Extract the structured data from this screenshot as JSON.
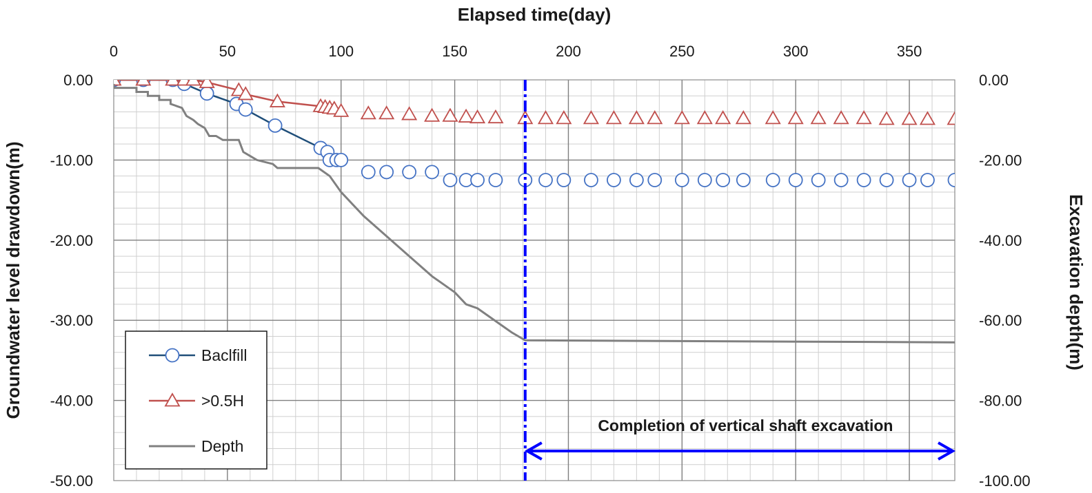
{
  "chart_data": {
    "type": "line",
    "title": "",
    "xlabel": "Elapsed time(day)",
    "ylabel": "Groundwater level drawdown(m)",
    "y2label": "Excavation  depth(m)",
    "xlim": [
      0,
      370
    ],
    "ylim": [
      -50,
      0
    ],
    "y2lim": [
      -100,
      0
    ],
    "x_ticks": [
      "0",
      "50",
      "100",
      "150",
      "200",
      "250",
      "300",
      "350"
    ],
    "y_ticks": [
      "0.00",
      "-10.00",
      "-20.00",
      "-30.00",
      "-40.00",
      "-50.00"
    ],
    "y2_ticks": [
      "0.00",
      "-20.00",
      "-40.00",
      "-60.00",
      "-80.00",
      "-100.00"
    ],
    "grid": true,
    "legend_position": "bottom-left",
    "series": [
      {
        "name": "Baclfill",
        "color": "#1f4e79",
        "marker": "circle",
        "marker_color": "#4472c4",
        "axis": "left",
        "x": [
          0,
          13,
          26,
          31,
          41,
          54,
          58,
          71,
          91,
          94,
          95,
          98,
          100,
          112,
          120,
          130,
          140,
          148,
          155,
          160,
          168,
          181,
          190,
          198,
          210,
          220,
          230,
          238,
          250,
          260,
          268,
          277,
          290,
          300,
          310,
          320,
          330,
          340,
          350,
          358,
          370
        ],
        "y": [
          0,
          0,
          0,
          -0.5,
          -1.7,
          -3,
          -3.7,
          -5.7,
          -8.5,
          -9,
          -10,
          -10,
          -10,
          -11.5,
          -11.5,
          -11.5,
          -11.5,
          -12.5,
          -12.5,
          -12.5,
          -12.5,
          -12.5,
          -12.5,
          -12.5,
          -12.5,
          -12.5,
          -12.5,
          -12.5,
          -12.5,
          -12.5,
          -12.5,
          -12.5,
          -12.5,
          -12.5,
          -12.5,
          -12.5,
          -12.5,
          -12.5,
          -12.5,
          -12.5,
          -12.5
        ]
      },
      {
        "name": ">0.5H",
        "color": "#c0504d",
        "marker": "triangle",
        "marker_color": "#c0504d",
        "axis": "left",
        "x": [
          0,
          13,
          26,
          31,
          35,
          41,
          55,
          58,
          72,
          91,
          93,
          95,
          97,
          100,
          112,
          120,
          130,
          140,
          148,
          155,
          160,
          168,
          181,
          190,
          198,
          210,
          220,
          230,
          238,
          250,
          260,
          268,
          277,
          290,
          300,
          310,
          320,
          330,
          340,
          350,
          358,
          370
        ],
        "y": [
          0,
          0,
          0,
          0,
          0,
          -0.3,
          -1.3,
          -1.8,
          -2.7,
          -3.3,
          -3.4,
          -3.5,
          -3.6,
          -3.9,
          -4.2,
          -4.2,
          -4.3,
          -4.5,
          -4.5,
          -4.6,
          -4.7,
          -4.7,
          -4.8,
          -4.8,
          -4.8,
          -4.8,
          -4.8,
          -4.8,
          -4.8,
          -4.8,
          -4.8,
          -4.8,
          -4.8,
          -4.8,
          -4.8,
          -4.8,
          -4.8,
          -4.8,
          -4.9,
          -4.9,
          -4.9,
          -4.9
        ]
      },
      {
        "name": "Depth",
        "color": "#808080",
        "marker": "none",
        "axis": "right",
        "x": [
          0,
          0,
          10,
          10,
          15,
          15,
          20,
          20,
          25,
          25,
          30,
          32,
          35,
          37,
          40,
          42,
          45,
          48,
          55,
          57,
          60,
          63,
          70,
          72,
          80,
          90,
          95,
          100,
          110,
          120,
          130,
          140,
          150,
          155,
          160,
          165,
          170,
          175,
          181,
          370
        ],
        "y": [
          -1,
          -2,
          -2,
          -3,
          -3,
          -4,
          -4,
          -5,
          -5,
          -6,
          -7,
          -9,
          -10,
          -11,
          -12,
          -14,
          -14,
          -15,
          -15,
          -18,
          -19,
          -20,
          -21,
          -22,
          -22,
          -22,
          -24,
          -28,
          -34,
          -39,
          -44,
          -49,
          -53,
          -56,
          -57,
          -59,
          -61,
          -63,
          -65,
          -65.5
        ]
      }
    ],
    "annotations": [
      {
        "text": "Completion of vertical shaft excavation",
        "x_start": 181,
        "x_end": 370,
        "color": "#0000ff"
      }
    ],
    "vertical_line": {
      "x": 181,
      "color": "#0000ff",
      "style": "dash-dot"
    }
  }
}
